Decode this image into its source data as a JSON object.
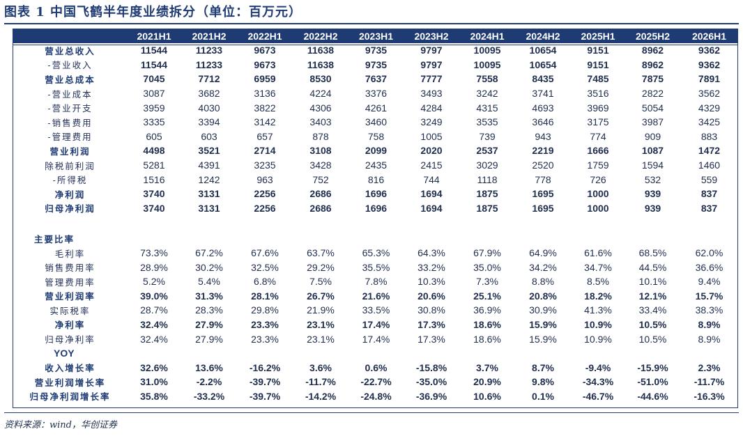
{
  "title": "图表 1   中国飞鹤半年度业绩拆分（单位：百万元）",
  "columns": [
    "2021H1",
    "2021H2",
    "2022H1",
    "2022H2",
    "2023H1",
    "2023H2",
    "2024H1",
    "2024H2",
    "2025H1",
    "2025H2",
    "2026H1"
  ],
  "rows": [
    {
      "label": "营业总收入",
      "style": "bold",
      "values": [
        "11544",
        "11233",
        "9673",
        "11638",
        "9735",
        "9797",
        "10095",
        "10654",
        "9151",
        "8962",
        "9362"
      ]
    },
    {
      "label": "-营业收入",
      "style": "boldval",
      "values": [
        "11544",
        "11233",
        "9673",
        "11638",
        "9735",
        "9797",
        "10095",
        "10654",
        "9151",
        "8962",
        "9362"
      ]
    },
    {
      "label": "营业总成本",
      "style": "bold",
      "values": [
        "7045",
        "7712",
        "6959",
        "8530",
        "7637",
        "7777",
        "7558",
        "8435",
        "7485",
        "7875",
        "7891"
      ]
    },
    {
      "label": "-营业成本",
      "style": "normal",
      "values": [
        "3087",
        "3682",
        "3136",
        "4224",
        "3376",
        "3493",
        "3242",
        "3741",
        "3516",
        "2822",
        "3562"
      ]
    },
    {
      "label": "-营业开支",
      "style": "normal",
      "values": [
        "3959",
        "4030",
        "3822",
        "4306",
        "4261",
        "4284",
        "4315",
        "4693",
        "3969",
        "5054",
        "4329"
      ]
    },
    {
      "label": "-销售费用",
      "style": "normal",
      "values": [
        "3335",
        "3394",
        "3142",
        "3403",
        "3460",
        "3249",
        "3535",
        "3646",
        "3175",
        "3987",
        "3425"
      ]
    },
    {
      "label": "-管理费用",
      "style": "normal",
      "values": [
        "605",
        "603",
        "657",
        "878",
        "758",
        "1005",
        "739",
        "943",
        "774",
        "909",
        "883"
      ]
    },
    {
      "label": "营业利润",
      "style": "bold",
      "values": [
        "4498",
        "3521",
        "2714",
        "3108",
        "2099",
        "2020",
        "2537",
        "2219",
        "1666",
        "1087",
        "1472"
      ]
    },
    {
      "label": "除税前利润",
      "style": "normal",
      "values": [
        "5281",
        "4391",
        "3235",
        "3428",
        "2435",
        "2415",
        "3029",
        "2520",
        "1759",
        "1594",
        "1460"
      ]
    },
    {
      "label": "-所得税",
      "style": "normal",
      "values": [
        "1516",
        "1242",
        "963",
        "752",
        "816",
        "744",
        "1118",
        "778",
        "726",
        "532",
        "559"
      ]
    },
    {
      "label": "净利润",
      "style": "bold",
      "values": [
        "3740",
        "3131",
        "2256",
        "2686",
        "1696",
        "1694",
        "1875",
        "1695",
        "1000",
        "939",
        "837"
      ]
    },
    {
      "label": "归母净利润",
      "style": "bold",
      "values": [
        "3740",
        "3131",
        "2256",
        "2686",
        "1696",
        "1694",
        "1875",
        "1695",
        "1000",
        "939",
        "837"
      ]
    },
    {
      "label": "",
      "style": "spacer",
      "values": []
    },
    {
      "label": "主要比率",
      "style": "section",
      "values": []
    },
    {
      "label": "毛利率",
      "style": "normal",
      "values": [
        "73.3%",
        "67.2%",
        "67.6%",
        "63.7%",
        "65.3%",
        "64.3%",
        "67.9%",
        "64.9%",
        "61.6%",
        "68.5%",
        "62.0%"
      ]
    },
    {
      "label": "销售费用率",
      "style": "normal",
      "values": [
        "28.9%",
        "30.2%",
        "32.5%",
        "29.2%",
        "35.5%",
        "33.2%",
        "35.0%",
        "34.2%",
        "34.7%",
        "44.5%",
        "36.6%"
      ]
    },
    {
      "label": "管理费用率",
      "style": "normal",
      "values": [
        "5.2%",
        "5.4%",
        "6.8%",
        "7.5%",
        "7.8%",
        "10.3%",
        "7.3%",
        "8.8%",
        "8.5%",
        "10.1%",
        "9.4%"
      ]
    },
    {
      "label": "营业利润率",
      "style": "bold",
      "values": [
        "39.0%",
        "31.3%",
        "28.1%",
        "26.7%",
        "21.6%",
        "20.6%",
        "25.1%",
        "20.8%",
        "18.2%",
        "12.1%",
        "15.7%"
      ]
    },
    {
      "label": "实际税率",
      "style": "normal",
      "values": [
        "28.7%",
        "28.3%",
        "29.8%",
        "21.9%",
        "33.5%",
        "30.8%",
        "36.9%",
        "30.9%",
        "41.3%",
        "33.4%",
        "38.3%"
      ]
    },
    {
      "label": "净利率",
      "style": "bold",
      "values": [
        "32.4%",
        "27.9%",
        "23.3%",
        "23.1%",
        "17.4%",
        "17.3%",
        "18.6%",
        "15.9%",
        "10.9%",
        "10.5%",
        "8.9%"
      ]
    },
    {
      "label": "归母净利率",
      "style": "normal",
      "values": [
        "32.4%",
        "27.9%",
        "23.3%",
        "23.1%",
        "17.4%",
        "17.3%",
        "18.6%",
        "15.9%",
        "10.9%",
        "10.5%",
        "8.9%"
      ]
    },
    {
      "label": "YOY",
      "style": "section-en",
      "values": []
    },
    {
      "label": "收入增长率",
      "style": "bold",
      "values": [
        "32.6%",
        "13.6%",
        "-16.2%",
        "3.6%",
        "0.6%",
        "-15.8%",
        "3.7%",
        "8.7%",
        "-9.4%",
        "-15.9%",
        "2.3%"
      ]
    },
    {
      "label": "营业利润增长率",
      "style": "bold",
      "values": [
        "31.0%",
        "-2.2%",
        "-39.7%",
        "-11.7%",
        "-22.7%",
        "-35.0%",
        "20.9%",
        "9.8%",
        "-34.3%",
        "-51.0%",
        "-11.7%"
      ]
    },
    {
      "label": "归母净利润增长率",
      "style": "bold",
      "values": [
        "35.8%",
        "-33.2%",
        "-39.7%",
        "-14.2%",
        "-24.8%",
        "-36.9%",
        "10.6%",
        "0.1%",
        "-46.7%",
        "-44.6%",
        "-16.3%"
      ]
    }
  ],
  "source": "资料来源：wind，华创证券"
}
